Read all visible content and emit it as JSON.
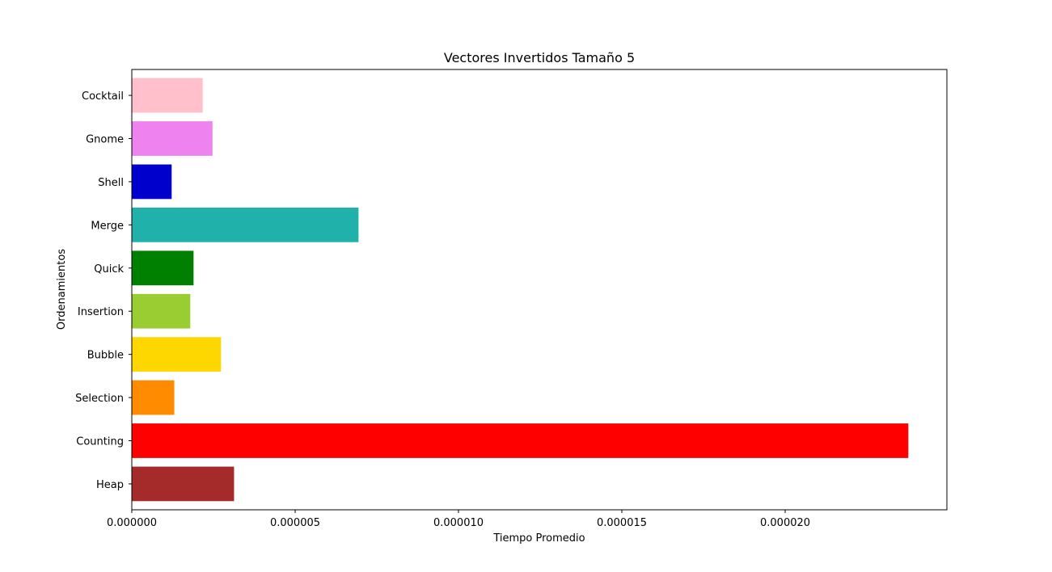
{
  "chart_data": {
    "type": "bar",
    "orientation": "horizontal",
    "title": "Vectores Invertidos Tamaño 5",
    "xlabel": "Tiempo Promedio",
    "ylabel": "Ordenamientos",
    "categories": [
      "Heap",
      "Counting",
      "Selection",
      "Bubble",
      "Insertion",
      "Quick",
      "Merge",
      "Shell",
      "Gnome",
      "Cocktail"
    ],
    "values": [
      3.13e-06,
      2.377e-05,
      1.3e-06,
      2.73e-06,
      1.79e-06,
      1.89e-06,
      6.94e-06,
      1.22e-06,
      2.47e-06,
      2.17e-06
    ],
    "colors": [
      "#a52a2a",
      "#ff0000",
      "#ff8c00",
      "#ffd700",
      "#9acd32",
      "#008000",
      "#20b2aa",
      "#0000cd",
      "#ee82ee",
      "#ffc0cb"
    ],
    "xlim": [
      0,
      2.495e-05
    ],
    "xticks": [
      0,
      5e-06,
      1e-05,
      1.5e-05,
      2e-05
    ],
    "xtick_labels": [
      "0.000000",
      "0.000005",
      "0.000010",
      "0.000015",
      "0.000020"
    ],
    "grid": false,
    "legend": false
  }
}
